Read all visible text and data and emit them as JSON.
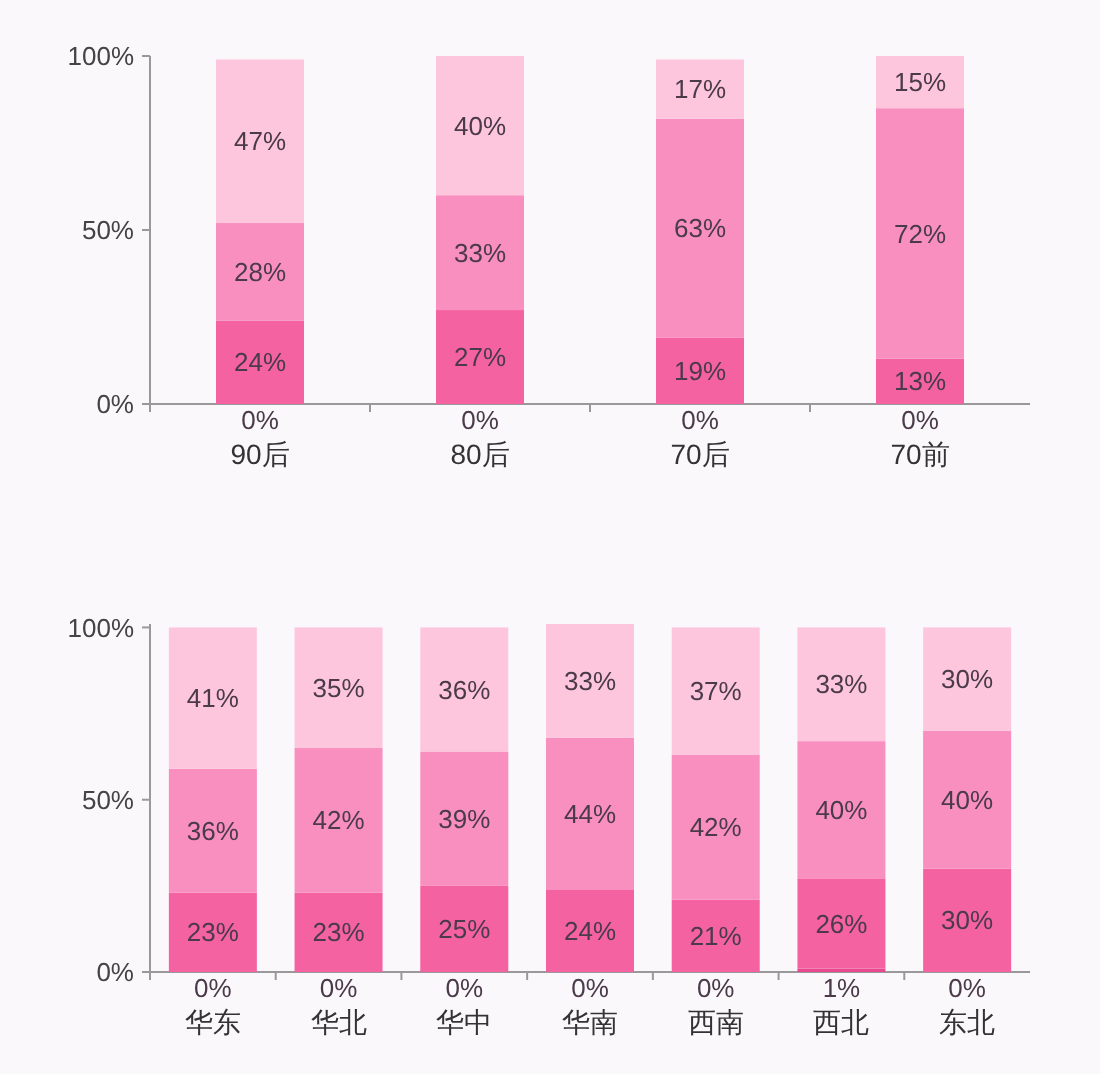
{
  "chart_data": [
    {
      "type": "bar",
      "stacked": true,
      "categories": [
        "90后",
        "80后",
        "70后",
        "70前"
      ],
      "ylim": [
        0,
        100
      ],
      "yticks": [
        {
          "value": 0,
          "label": "0%"
        },
        {
          "value": 50,
          "label": "50%"
        },
        {
          "value": 100,
          "label": "100%"
        }
      ],
      "series": [
        {
          "color": "#e8488e",
          "values": [
            0,
            0,
            0,
            0
          ],
          "value_labels": [
            "0%",
            "0%",
            "0%",
            "0%"
          ]
        },
        {
          "color": "#f462a2",
          "values": [
            24,
            27,
            19,
            13
          ],
          "value_labels": [
            "24%",
            "27%",
            "19%",
            "13%"
          ]
        },
        {
          "color": "#f98fbf",
          "values": [
            28,
            33,
            63,
            72
          ],
          "value_labels": [
            "28%",
            "33%",
            "63%",
            "72%"
          ]
        },
        {
          "color": "#fdc6dd",
          "values": [
            47,
            40,
            17,
            15
          ],
          "value_labels": [
            "47%",
            "40%",
            "17%",
            "15%"
          ]
        }
      ]
    },
    {
      "type": "bar",
      "stacked": true,
      "categories": [
        "华东",
        "华北",
        "华中",
        "华南",
        "西南",
        "西北",
        "东北"
      ],
      "ylim": [
        0,
        101
      ],
      "yticks": [
        {
          "value": 0,
          "label": "0%"
        },
        {
          "value": 50,
          "label": "50%"
        },
        {
          "value": 100,
          "label": "100%"
        }
      ],
      "series": [
        {
          "color": "#e8488e",
          "values": [
            0,
            0,
            0,
            0,
            0,
            1,
            0
          ],
          "value_labels": [
            "0%",
            "0%",
            "0%",
            "0%",
            "0%",
            "1%",
            "0%"
          ]
        },
        {
          "color": "#f462a2",
          "values": [
            23,
            23,
            25,
            24,
            21,
            26,
            30
          ],
          "value_labels": [
            "23%",
            "23%",
            "25%",
            "24%",
            "21%",
            "26%",
            "30%"
          ]
        },
        {
          "color": "#f98fbf",
          "values": [
            36,
            42,
            39,
            44,
            42,
            40,
            40
          ],
          "value_labels": [
            "36%",
            "42%",
            "39%",
            "44%",
            "42%",
            "40%",
            "40%"
          ]
        },
        {
          "color": "#fdc6dd",
          "values": [
            41,
            35,
            36,
            33,
            37,
            33,
            30
          ],
          "value_labels": [
            "41%",
            "35%",
            "36%",
            "33%",
            "37%",
            "33%",
            "30%"
          ]
        }
      ]
    }
  ]
}
